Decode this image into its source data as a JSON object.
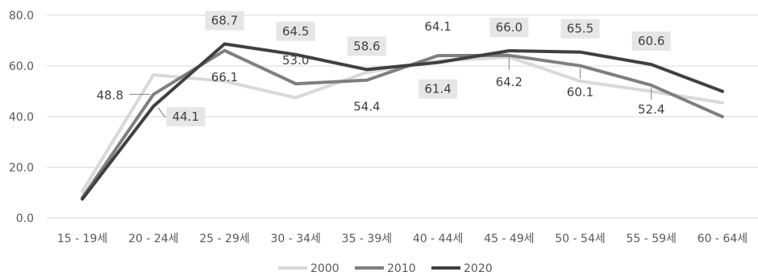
{
  "chart_data": {
    "type": "line",
    "title": "",
    "xlabel": "",
    "ylabel": "",
    "ylim": [
      0,
      80
    ],
    "yticks": [
      "0.0",
      "20.0",
      "40.0",
      "60.0",
      "80.0"
    ],
    "grid": true,
    "legend_position": "bottom",
    "categories": [
      "15 - 19세",
      "20 - 24세",
      "25 - 29세",
      "30 - 34세",
      "35 - 39세",
      "40 - 44세",
      "45 - 49세",
      "50 - 54세",
      "55 - 59세",
      "60 - 64세"
    ],
    "series": [
      {
        "name": "2000",
        "color": "#d9d9d9",
        "values": [
          10.5,
          56.5,
          54.0,
          47.5,
          57.5,
          62.0,
          63.5,
          54.0,
          50.0,
          45.5
        ]
      },
      {
        "name": "2010",
        "color": "#7f7f7f",
        "values": [
          8.0,
          48.8,
          66.1,
          53.0,
          54.4,
          64.1,
          64.2,
          60.1,
          52.4,
          40.0
        ]
      },
      {
        "name": "2020",
        "color": "#404040",
        "values": [
          7.5,
          44.1,
          68.7,
          64.5,
          58.6,
          61.4,
          66.0,
          65.5,
          60.6,
          50.0
        ]
      }
    ],
    "data_labels": [
      {
        "series": 1,
        "index": 1,
        "text": "48.8",
        "boxed": false
      },
      {
        "series": 2,
        "index": 1,
        "text": "44.1",
        "boxed": true
      },
      {
        "series": 2,
        "index": 2,
        "text": "68.7",
        "boxed": true
      },
      {
        "series": 1,
        "index": 2,
        "text": "66.1",
        "boxed": false
      },
      {
        "series": 2,
        "index": 3,
        "text": "64.5",
        "boxed": true
      },
      {
        "series": 1,
        "index": 3,
        "text": "53.0",
        "boxed": false
      },
      {
        "series": 2,
        "index": 4,
        "text": "58.6",
        "boxed": true
      },
      {
        "series": 1,
        "index": 4,
        "text": "54.4",
        "boxed": false
      },
      {
        "series": 1,
        "index": 5,
        "text": "64.1",
        "boxed": false
      },
      {
        "series": 2,
        "index": 5,
        "text": "61.4",
        "boxed": true
      },
      {
        "series": 2,
        "index": 6,
        "text": "66.0",
        "boxed": true
      },
      {
        "series": 1,
        "index": 6,
        "text": "64.2",
        "boxed": false
      },
      {
        "series": 2,
        "index": 7,
        "text": "65.5",
        "boxed": true
      },
      {
        "series": 1,
        "index": 7,
        "text": "60.1",
        "boxed": false
      },
      {
        "series": 2,
        "index": 8,
        "text": "60.6",
        "boxed": true
      },
      {
        "series": 1,
        "index": 8,
        "text": "52.4",
        "boxed": false
      }
    ]
  }
}
